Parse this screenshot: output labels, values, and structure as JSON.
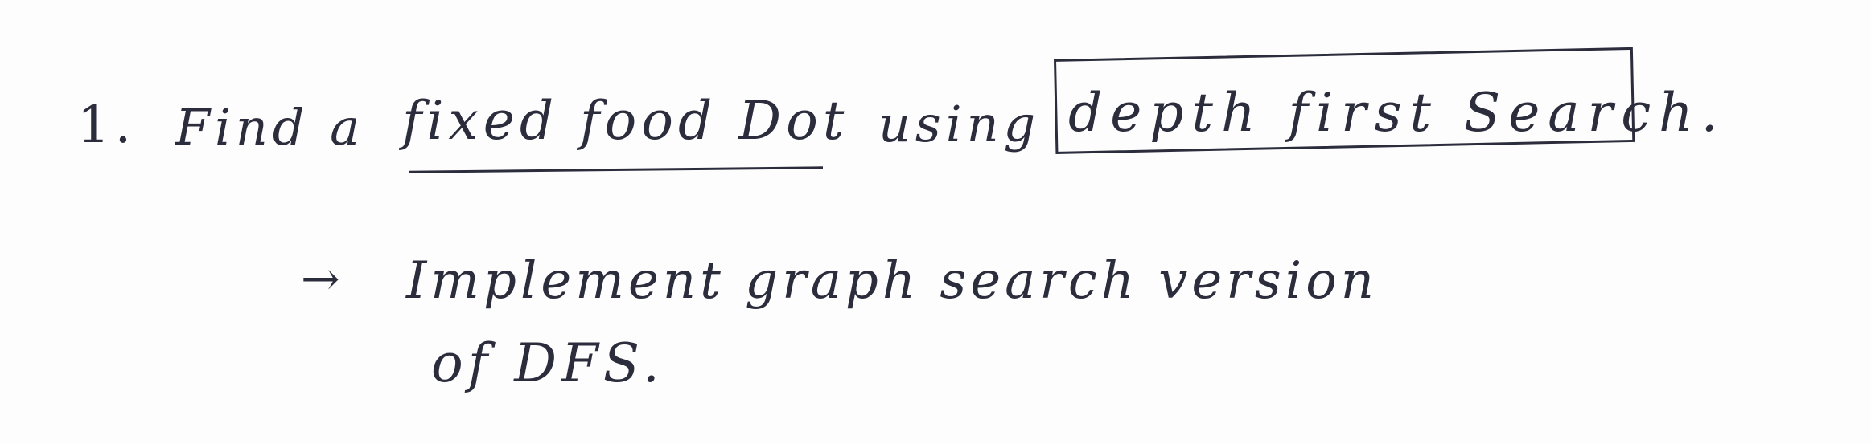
{
  "note": {
    "item_number": "1.",
    "line1_prefix": "Find a",
    "line1_underlined": "fixed food Dot",
    "line1_using": "using",
    "line1_boxed": "depth first Search.",
    "arrow": "→",
    "line2": "Implement graph search version",
    "line3": "of DFS."
  },
  "colors": {
    "ink": "#2b2d3c",
    "paper": "#fdfdfd"
  }
}
